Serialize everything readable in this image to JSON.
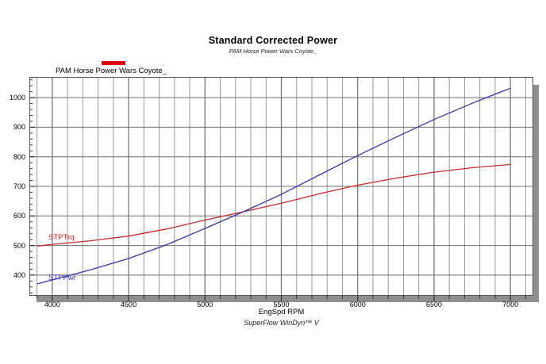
{
  "header": {
    "title": "Standard Corrected Power",
    "subtitle": "PAM Horse Power Wars Coyote_"
  },
  "legend": {
    "label": "PAM Horse Power Wars Coyote_",
    "swatch_color": "#dd0000"
  },
  "footer": "SuperFlow WinDyn™ V",
  "colors": {
    "torque_line": "#cc2a2a",
    "power_line": "#3535b5",
    "grid_minor": "#9a9a9a",
    "grid_major": "#6f6f6f",
    "axis_border": "#555555",
    "shadow": "#8f8f8f"
  },
  "chart_data": {
    "type": "line",
    "title": "Standard Corrected Power",
    "subtitle": "PAM Horse Power Wars Coyote_",
    "xlabel": "EngSpd RPM",
    "ylabel": "",
    "xlim": [
      3850,
      7150
    ],
    "ylim": [
      330,
      1070
    ],
    "x_major_ticks": [
      4000,
      4500,
      5000,
      5500,
      6000,
      6500,
      7000
    ],
    "x_minor_step": 100,
    "y_major_ticks": [
      400,
      500,
      600,
      700,
      800,
      900,
      1000
    ],
    "y_minor_step": 20,
    "grid": true,
    "legend_position": "top-left",
    "x": [
      3900,
      4000,
      4250,
      4500,
      4750,
      5000,
      5250,
      5500,
      5750,
      6000,
      6250,
      6500,
      6750,
      7000
    ],
    "series": [
      {
        "name": "STPTrq",
        "color": "#cc2a2a",
        "values": [
          498,
          504,
          516,
          532,
          556,
          586,
          614,
          643,
          675,
          704,
          728,
          748,
          763,
          774
        ],
        "label_anchor": {
          "rpm": 3975,
          "value": 543
        }
      },
      {
        "name": "STPPwr",
        "color": "#3535b5",
        "values": [
          370,
          384,
          418,
          456,
          503,
          558,
          614,
          673,
          739,
          804,
          866,
          926,
          981,
          1032
        ],
        "label_anchor": {
          "rpm": 3975,
          "value": 405
        }
      }
    ]
  }
}
